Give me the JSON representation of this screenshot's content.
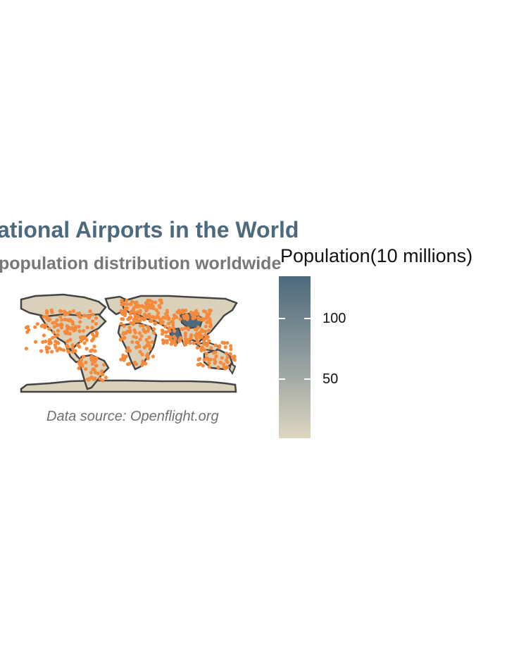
{
  "title": "ational Airports in the World",
  "subtitle": "population distribution worldwide",
  "caption": "Data source: Openflight.org",
  "legend": {
    "title": "Population(10 millions)",
    "ticks": [
      {
        "label": "100",
        "value": 100
      },
      {
        "label": "50",
        "value": 50
      }
    ],
    "range": [
      2,
      135
    ],
    "colors": {
      "high": "#4d6a7c",
      "mid": "#8f9b9d",
      "low": "#ddd6c0"
    }
  },
  "map": {
    "land_color": "#d9d1ba",
    "border_color": "#444444",
    "airport_color": "#f58a3c",
    "high_population_color": "#4d6a7c"
  }
}
